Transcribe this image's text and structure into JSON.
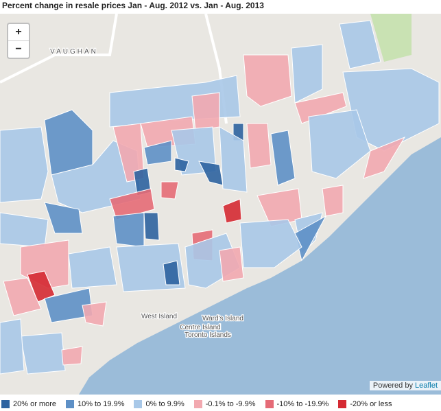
{
  "title": "Percent change in resale prices Jan - Aug. 2012 vs. Jan - Aug. 2013",
  "controls": {
    "zoom_in": "+",
    "zoom_out": "−"
  },
  "map_labels": [
    "VAUGHAN",
    "West Island",
    "Ward's Island",
    "Centre Island",
    "Toronto Islands"
  ],
  "attribution": {
    "prefix": "Powered by",
    "link": "Leaflet"
  },
  "legend": [
    {
      "label": "20% or more",
      "color": "#2e63a0"
    },
    {
      "label": "10% to 19.9%",
      "color": "#5e90c6"
    },
    {
      "label": "0% to 9.9%",
      "color": "#a8c8e8"
    },
    {
      "label": "-0.1% to -9.9%",
      "color": "#f2a9b0"
    },
    {
      "label": "-10% to -19.9%",
      "color": "#e56b77"
    },
    {
      "label": "-20% or less",
      "color": "#d52a33"
    }
  ]
}
